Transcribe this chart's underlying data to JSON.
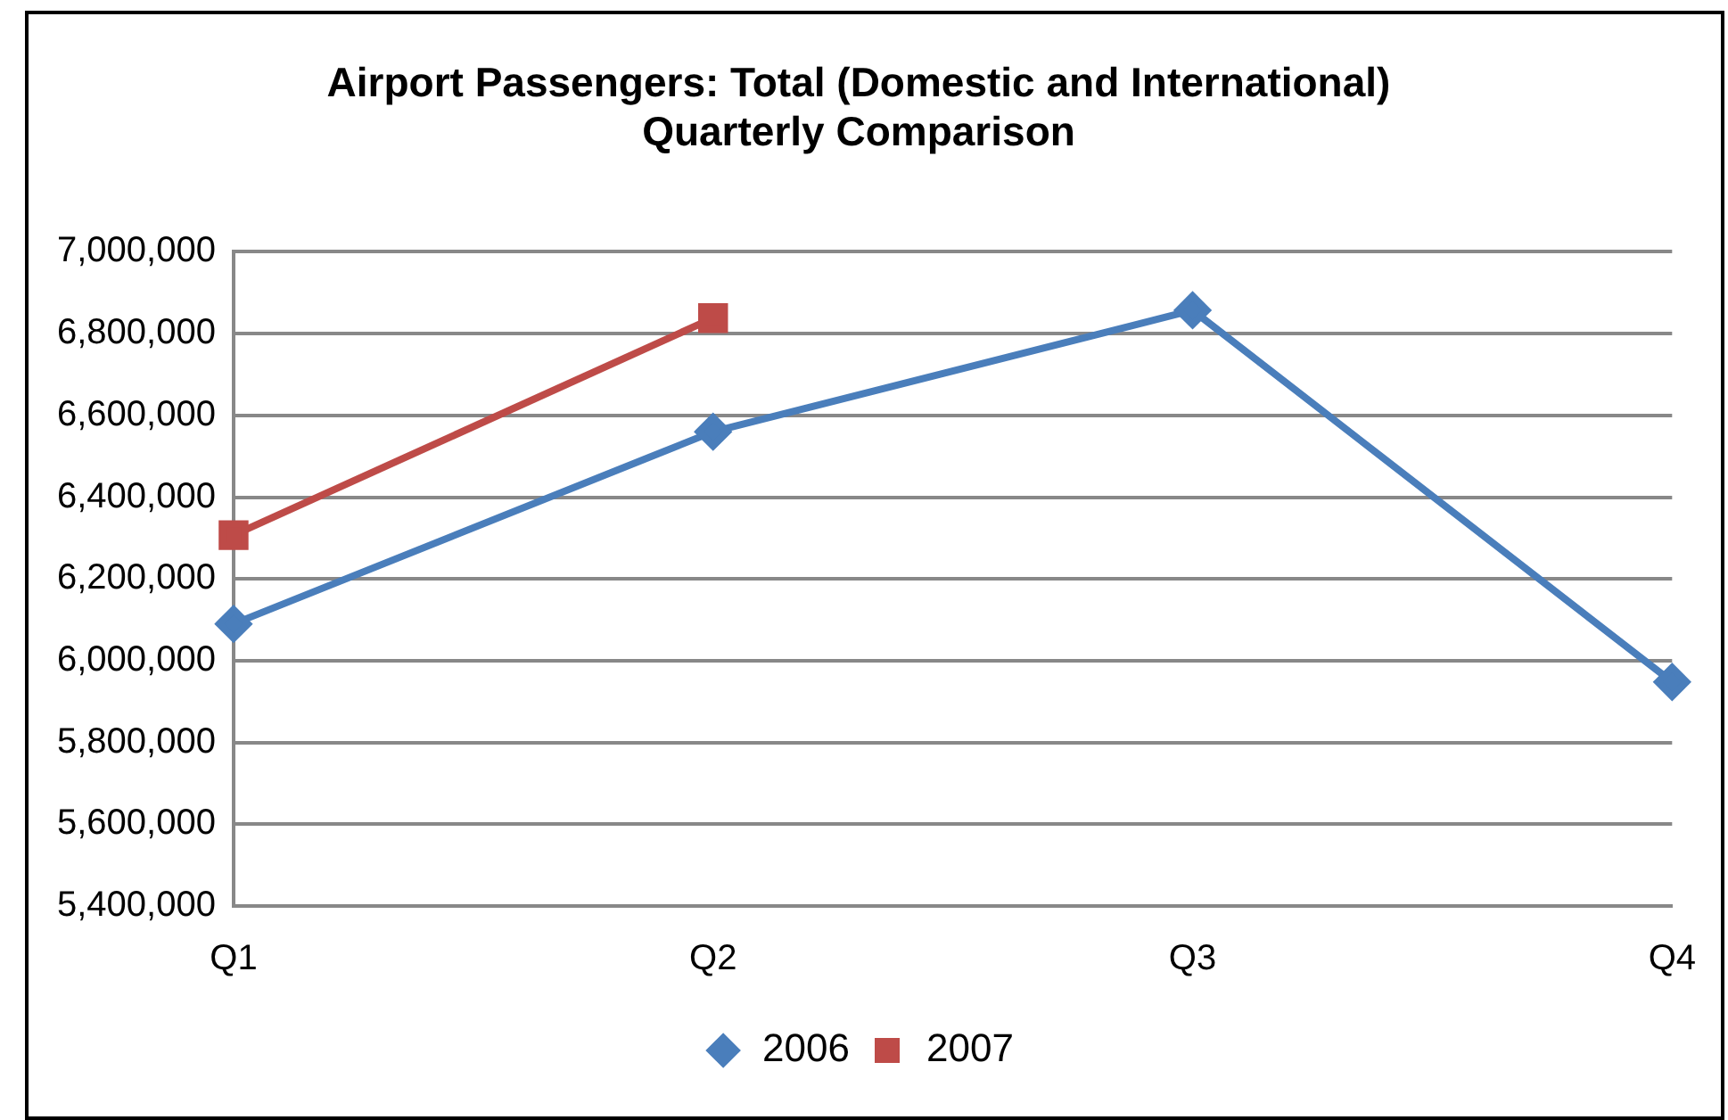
{
  "chart_data": {
    "type": "line",
    "title": "Airport Passengers: Total (Domestic and International)\nQuarterly Comparison",
    "categories": [
      "Q1",
      "Q2",
      "Q3",
      "Q4"
    ],
    "series": [
      {
        "name": "2006",
        "color": "#4a7ebb",
        "marker": "diamond",
        "values": [
          6090000,
          6560000,
          6857000,
          5948000
        ]
      },
      {
        "name": "2007",
        "color": "#be4b48",
        "marker": "square",
        "values": [
          6307000,
          6838000,
          null,
          null
        ]
      }
    ],
    "ylim": [
      5400000,
      7000000
    ],
    "yticks": [
      {
        "value": 5400000,
        "label": "5,400,000"
      },
      {
        "value": 5600000,
        "label": "5,600,000"
      },
      {
        "value": 5800000,
        "label": "5,800,000"
      },
      {
        "value": 6000000,
        "label": "6,000,000"
      },
      {
        "value": 6200000,
        "label": "6,200,000"
      },
      {
        "value": 6400000,
        "label": "6,400,000"
      },
      {
        "value": 6600000,
        "label": "6,600,000"
      },
      {
        "value": 6800000,
        "label": "6,800,000"
      },
      {
        "value": 7000000,
        "label": "7,000,000"
      }
    ],
    "grid": "y",
    "legend": "bottom"
  }
}
